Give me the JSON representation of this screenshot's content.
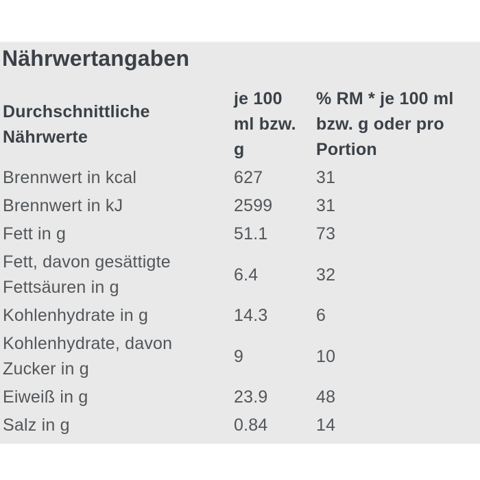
{
  "title": "Nährwertangaben",
  "table": {
    "headers": [
      "Durchschnittliche Nährwerte",
      "je 100 ml bzw. g",
      "% RM * je 100 ml bzw. g oder pro Portion"
    ],
    "rows": [
      {
        "label": "Brennwert in kcal",
        "per_100": "627",
        "rm_percent": "31"
      },
      {
        "label": "Brennwert in kJ",
        "per_100": "2599",
        "rm_percent": "31"
      },
      {
        "label": "Fett in g",
        "per_100": "51.1",
        "rm_percent": "73"
      },
      {
        "label": "Fett, davon gesättigte Fettsäuren in g",
        "per_100": "6.4",
        "rm_percent": "32"
      },
      {
        "label": "Kohlenhydrate in g",
        "per_100": "14.3",
        "rm_percent": "6"
      },
      {
        "label": "Kohlenhydrate, davon Zucker in g",
        "per_100": "9",
        "rm_percent": "10"
      },
      {
        "label": "Eiweiß in g",
        "per_100": "23.9",
        "rm_percent": "48"
      },
      {
        "label": "Salz in g",
        "per_100": "0.84",
        "rm_percent": "14"
      }
    ]
  },
  "colors": {
    "page_bg": "#ffffff",
    "panel_bg": "#e9e9e9",
    "heading_text": "#3b4147",
    "body_text": "#52565a"
  }
}
